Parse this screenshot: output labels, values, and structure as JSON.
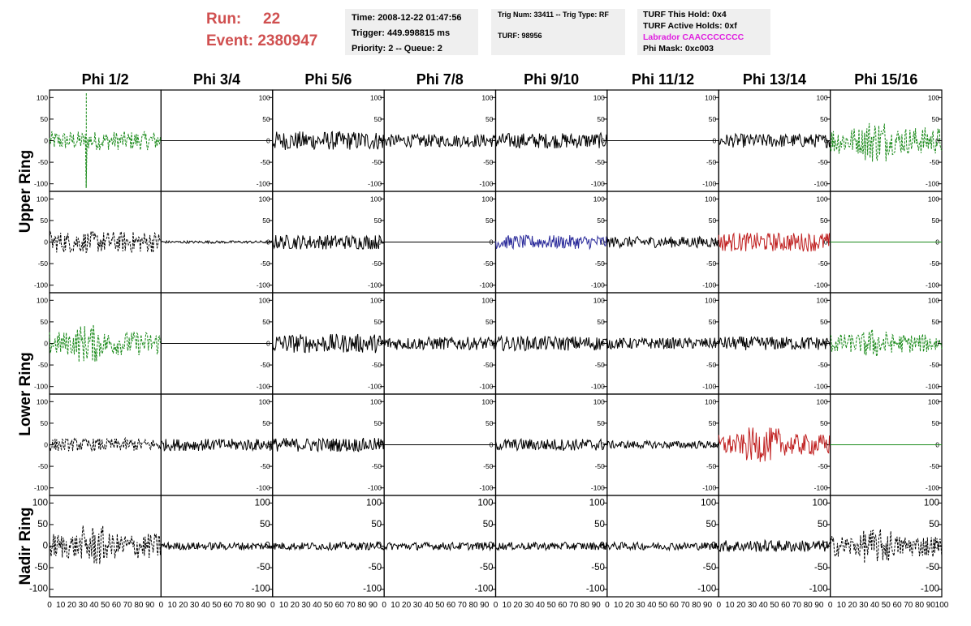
{
  "header": {
    "run_label": "Run:",
    "run_value": "22",
    "event_label": "Event:",
    "event_value": "2380947"
  },
  "info_box_1": {
    "time": "Time: 2008-12-22 01:47:56",
    "trigger": "Trigger: 449.998815 ms",
    "priority": "Priority: 2 -- Queue: 2"
  },
  "info_box_2": {
    "trig": "Trig Num: 33411 -- Trig Type: RF",
    "turf": "TURF: 98956"
  },
  "info_box_3": {
    "this_hold": "TURF This Hold: 0x4",
    "active_holds": "TURF Active Holds: 0xf",
    "labrador": "Labrador CAACCCCCCC",
    "phi_mask": "Phi Mask: 0xc003",
    "labrador_color": "#e020e0"
  },
  "chart_data": {
    "type": "line",
    "columns": [
      "Phi 1/2",
      "Phi 3/4",
      "Phi 5/6",
      "Phi 7/8",
      "Phi 9/10",
      "Phi 11/12",
      "Phi 13/14",
      "Phi 15/16"
    ],
    "ring_labels": [
      "Upper Ring",
      "Lower Ring",
      "Nadir Ring"
    ],
    "xlim": [
      0,
      100
    ],
    "ylim": [
      -110,
      110
    ],
    "ytick_values": [
      -100,
      -50,
      0,
      50,
      100
    ],
    "xtick_labels": [
      "0",
      "10",
      "20",
      "30",
      "40",
      "50",
      "60",
      "70",
      "80",
      "90",
      "100"
    ],
    "colors": {
      "black": "#000000",
      "green": "#1a8a1a",
      "blue": "#2a2a9a",
      "red": "#c02020"
    },
    "rows": [
      [
        {
          "color": "green",
          "dashed": true,
          "amp": 22,
          "spike": {
            "x": 33,
            "ymax": 110,
            "ymin": -110
          }
        },
        {
          "color": "black",
          "dashed": false,
          "amp": 0
        },
        {
          "color": "black",
          "dashed": false,
          "amp": 22
        },
        {
          "color": "black",
          "dashed": false,
          "amp": 15
        },
        {
          "color": "black",
          "dashed": false,
          "amp": 18
        },
        {
          "color": "black",
          "dashed": false,
          "amp": 0
        },
        {
          "color": "black",
          "dashed": false,
          "amp": 16
        },
        {
          "color": "green",
          "dashed": true,
          "amp": 32,
          "burst": [
            30,
            50
          ]
        }
      ],
      [
        {
          "color": "black",
          "dashed": true,
          "amp": 25
        },
        {
          "color": "black",
          "dashed": false,
          "amp": 3
        },
        {
          "color": "black",
          "dashed": false,
          "amp": 17
        },
        {
          "color": "black",
          "dashed": false,
          "amp": 0
        },
        {
          "color": "blue",
          "dashed": false,
          "amp": 16
        },
        {
          "color": "black",
          "dashed": false,
          "amp": 13
        },
        {
          "color": "red",
          "dashed": false,
          "amp": 22
        },
        {
          "color": "green",
          "dashed": false,
          "amp": 0
        }
      ],
      [
        {
          "color": "green",
          "dashed": true,
          "amp": 28,
          "burst": [
            25,
            45
          ]
        },
        {
          "color": "black",
          "dashed": false,
          "amp": 0
        },
        {
          "color": "black",
          "dashed": false,
          "amp": 22
        },
        {
          "color": "black",
          "dashed": false,
          "amp": 15
        },
        {
          "color": "black",
          "dashed": false,
          "amp": 17
        },
        {
          "color": "black",
          "dashed": false,
          "amp": 13
        },
        {
          "color": "black",
          "dashed": false,
          "amp": 16
        },
        {
          "color": "green",
          "dashed": true,
          "amp": 22,
          "burst": [
            30,
            50
          ]
        }
      ],
      [
        {
          "color": "black",
          "dashed": true,
          "amp": 15
        },
        {
          "color": "black",
          "dashed": false,
          "amp": 14
        },
        {
          "color": "black",
          "dashed": false,
          "amp": 16
        },
        {
          "color": "black",
          "dashed": false,
          "amp": 0
        },
        {
          "color": "black",
          "dashed": false,
          "amp": 14
        },
        {
          "color": "black",
          "dashed": false,
          "amp": 9
        },
        {
          "color": "red",
          "dashed": false,
          "amp": 25,
          "burst": [
            25,
            55
          ]
        },
        {
          "color": "green",
          "dashed": false,
          "amp": 0
        }
      ],
      [
        {
          "color": "black",
          "dashed": true,
          "amp": 30,
          "burst": [
            30,
            50
          ]
        },
        {
          "color": "black",
          "dashed": false,
          "amp": 9
        },
        {
          "color": "black",
          "dashed": false,
          "amp": 9
        },
        {
          "color": "black",
          "dashed": false,
          "amp": 9
        },
        {
          "color": "black",
          "dashed": false,
          "amp": 9
        },
        {
          "color": "black",
          "dashed": false,
          "amp": 9
        },
        {
          "color": "black",
          "dashed": false,
          "amp": 14
        },
        {
          "color": "black",
          "dashed": true,
          "amp": 25,
          "burst": [
            30,
            55
          ]
        }
      ]
    ]
  }
}
